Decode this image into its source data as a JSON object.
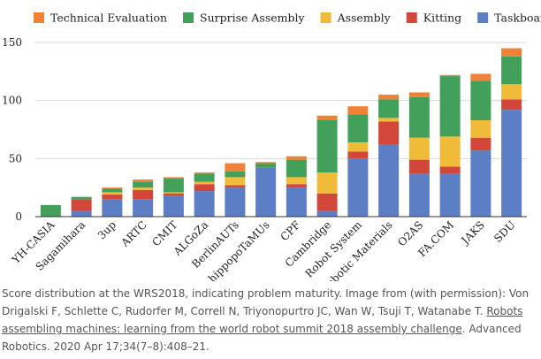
{
  "chart_data": {
    "type": "bar",
    "stacked": true,
    "categories": [
      "YH-CASIA",
      "Sagamihara",
      "3up",
      "ARTC",
      "CMIT",
      "ALGoZa",
      "BerlinAUTs",
      "hippopoTaMUs",
      "CPF",
      "Cambridge",
      "Robot System",
      "Robotic Materials",
      "O2AS",
      "FA.COM",
      "JAKS",
      "SDU"
    ],
    "series": [
      {
        "name": "Taskboard",
        "color": "#5b7ec4",
        "values": [
          0,
          5,
          15,
          15,
          18,
          22,
          25,
          42,
          25,
          5,
          50,
          62,
          37,
          37,
          57,
          92
        ]
      },
      {
        "name": "Kitting",
        "color": "#d2473a",
        "values": [
          0,
          10,
          4,
          8,
          2,
          6,
          2,
          0,
          3,
          15,
          6,
          20,
          12,
          6,
          11,
          9
        ]
      },
      {
        "name": "Assembly",
        "color": "#f1bb3a",
        "values": [
          0,
          0,
          2,
          2,
          1,
          2,
          7,
          0,
          6,
          18,
          8,
          3,
          19,
          26,
          15,
          13
        ]
      },
      {
        "name": "Surprise Assembly",
        "color": "#42a05a",
        "values": [
          10,
          2,
          3,
          5,
          12,
          7,
          5,
          4,
          15,
          45,
          24,
          16,
          35,
          52,
          34,
          24
        ]
      },
      {
        "name": "Technical Evaluation",
        "color": "#ef8236",
        "values": [
          0,
          0,
          1,
          2,
          1,
          1,
          7,
          1,
          3,
          4,
          7,
          4,
          4,
          1,
          6,
          7
        ]
      }
    ],
    "legend_order": [
      "Technical Evaluation",
      "Surprise Assembly",
      "Assembly",
      "Kitting",
      "Taskboard"
    ],
    "legend_position": "top",
    "ylim": [
      0,
      150
    ],
    "yticks": [
      0,
      50,
      100,
      150
    ],
    "grid": true,
    "xlabel": "",
    "ylabel": ""
  },
  "caption": {
    "prefix": "Score distribution at the WRS2018, indicating problem maturity. Image from (with permission): Von Drigalski F, Schlette C, Rudorfer M, Correll N, Triyonopurtro JC, Wan W, Tsuji T, Watanabe T. ",
    "link_text": "Robots assembling machines: learning from the world robot summit 2018 assembly challenge",
    "suffix": ". Advanced Robotics. 2020 Apr 17;34(7–8):408–21."
  }
}
